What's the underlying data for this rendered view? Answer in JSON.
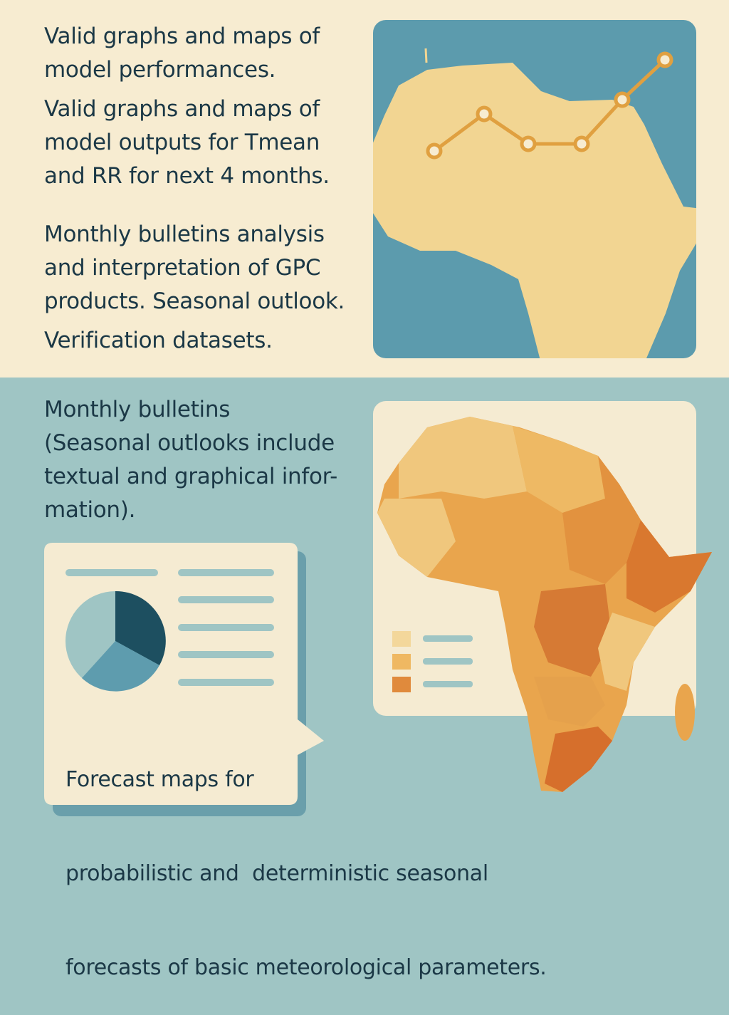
{
  "top": {
    "items": [
      {
        "lines": [
          "Valid graphs and maps of",
          "model performances."
        ]
      },
      {
        "lines": [
          "Valid graphs and maps of",
          "model outputs for Tmean",
          "and RR for next 4 months."
        ]
      },
      {
        "lines": [
          "Monthly bulletins analysis",
          "and interpretation of GPC",
          "products. Seasonal outlook."
        ]
      },
      {
        "lines": [
          "Verification datasets."
        ]
      }
    ]
  },
  "bottom": {
    "bulletins": {
      "lines": [
        "Monthly bulletins",
        "(Seasonal outlooks include",
        "textual and graphical infor-",
        "mation)."
      ]
    },
    "forecast": {
      "lines": [
        "Forecast maps for",
        "probabilistic and  deterministic seasonal",
        "forecasts of basic meteorological parameters."
      ]
    }
  }
}
